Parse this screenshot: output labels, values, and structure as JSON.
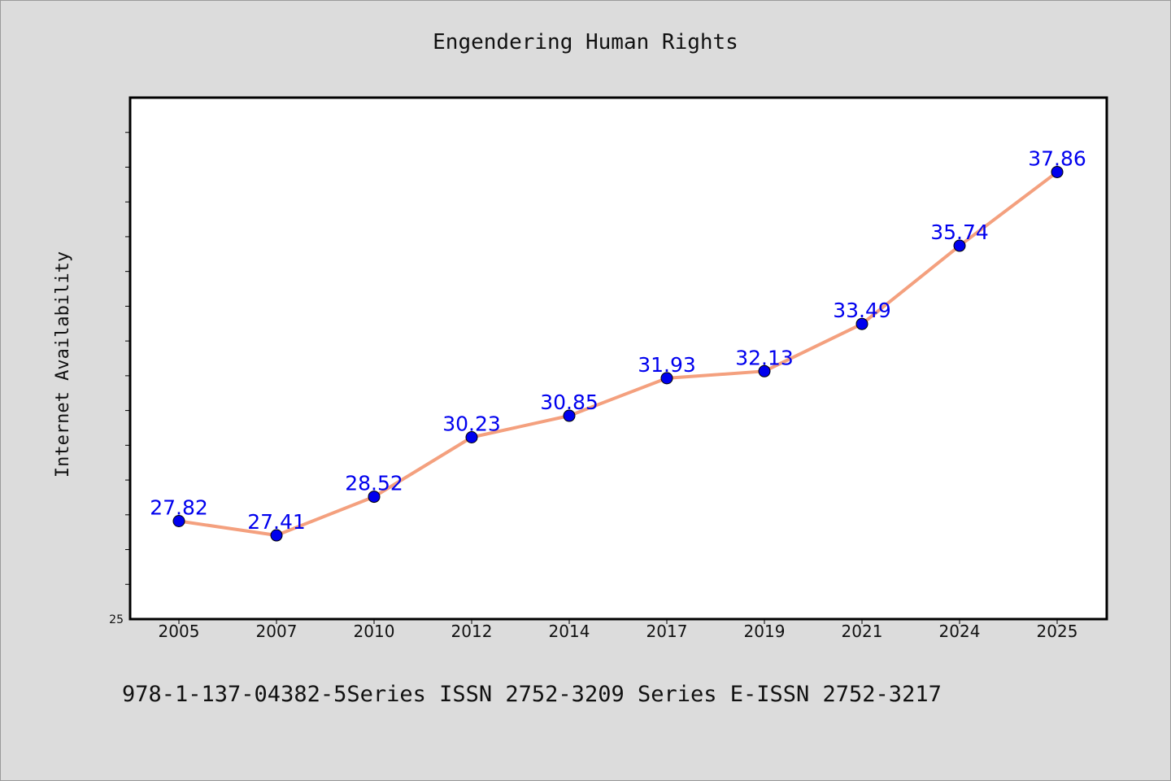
{
  "chart_data": {
    "type": "line",
    "title": "Engendering Human Rights",
    "xlabel": "",
    "ylabel": "Internet Availability",
    "categories": [
      "2005",
      "2007",
      "2010",
      "2012",
      "2014",
      "2017",
      "2019",
      "2021",
      "2024",
      "2025"
    ],
    "series": [
      {
        "values": [
          27.82,
          27.41,
          28.52,
          30.23,
          30.85,
          31.93,
          32.13,
          33.49,
          35.74,
          37.86
        ]
      }
    ],
    "ylim": [
      25,
      40
    ],
    "y_tick_labels": [
      "25"
    ],
    "grid": false,
    "line_color": "#f4a07e",
    "marker_color": "#0000ee",
    "label_color": "#0000ee"
  },
  "footer": {
    "text": "978-1-137-04382-5Series ISSN 2752-3209 Series E-ISSN 2752-3217"
  }
}
